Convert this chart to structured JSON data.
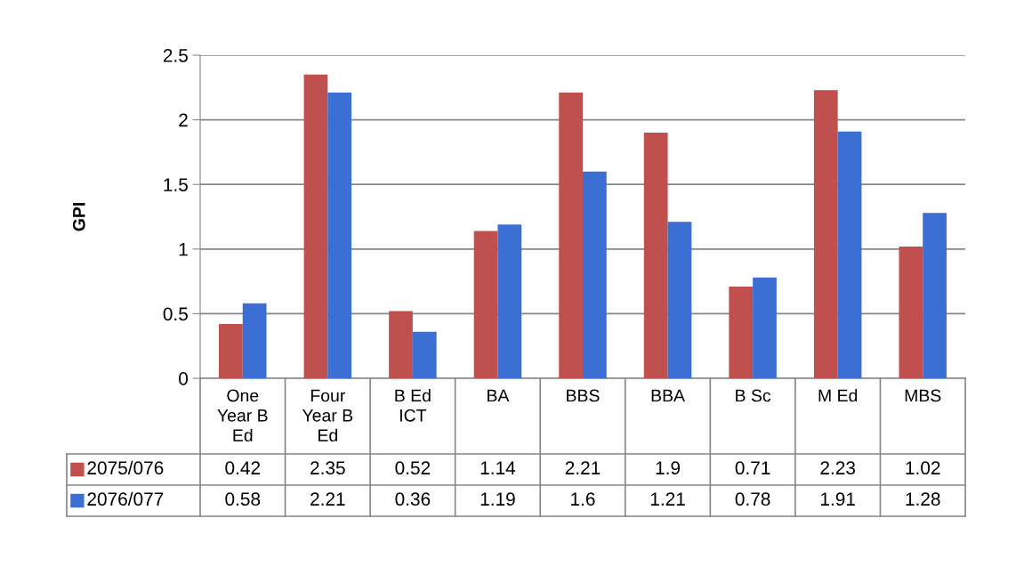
{
  "chart_data": {
    "type": "bar",
    "ylabel": "GPI",
    "categories": [
      "One Year B Ed",
      "Four Year B Ed",
      "B Ed ICT",
      "BA",
      "BBS",
      "BBA",
      "B Sc",
      "M Ed",
      "MBS"
    ],
    "series": [
      {
        "name": "2075/076",
        "color": "#c0504d",
        "values": [
          0.42,
          2.35,
          0.52,
          1.14,
          2.21,
          1.9,
          0.71,
          2.23,
          1.02
        ]
      },
      {
        "name": "2076/077",
        "color": "#3c6fd4",
        "values": [
          0.58,
          2.21,
          0.36,
          1.19,
          1.6,
          1.21,
          0.78,
          1.91,
          1.28
        ]
      }
    ],
    "ylim": [
      0,
      2.5
    ],
    "yticks": [
      0,
      0.5,
      1,
      1.5,
      2,
      2.5
    ],
    "grid": "y",
    "data_labels": true,
    "legend": "bottom"
  }
}
